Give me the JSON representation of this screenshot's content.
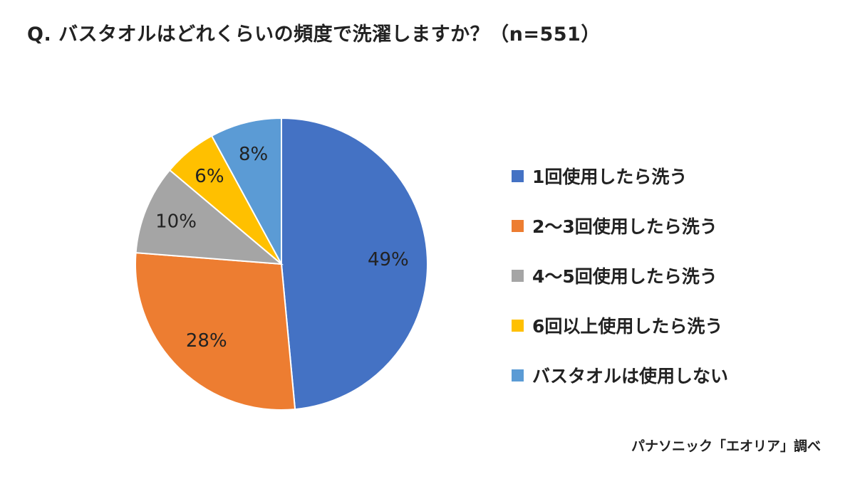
{
  "chart_data": {
    "type": "pie",
    "title": "Q. バスタオルはどれくらいの頻度で洗濯しますか？（n=551）",
    "categories": [
      "1回使用したら洗う",
      "2～3回使用したら洗う",
      "4～5回使用したら洗う",
      "6回以上使用したら洗う",
      "バスタオルは使用しない"
    ],
    "values": [
      49,
      28,
      10,
      6,
      8
    ],
    "data_labels": [
      "49%",
      "28%",
      "10%",
      "6%",
      "8%"
    ],
    "colors": [
      "#4472C4",
      "#ED7D31",
      "#A5A5A5",
      "#FFC000",
      "#5B9BD5"
    ],
    "start": "12 o'clock, clockwise",
    "legend_position": "right"
  },
  "source": "パナソニック「エオリア」調べ"
}
